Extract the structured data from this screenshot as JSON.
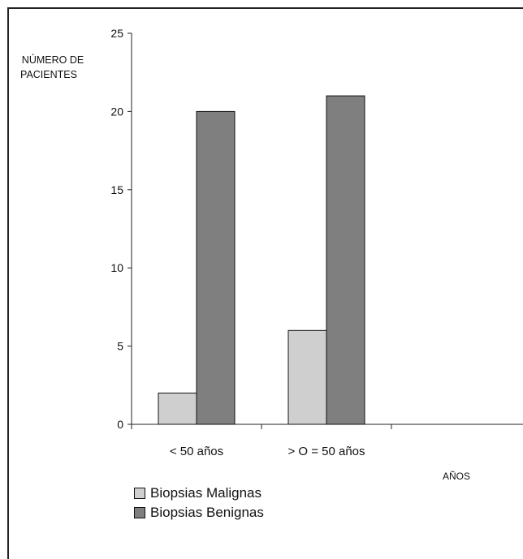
{
  "chart_data": {
    "type": "bar",
    "categories": [
      "< 50 años",
      "> O = 50 años"
    ],
    "series": [
      {
        "name": "Biopsias Malignas",
        "values": [
          2,
          6
        ],
        "color": "#cfcfcf"
      },
      {
        "name": "Biopsias Benignas",
        "values": [
          20,
          21
        ],
        "color": "#7f7f7f"
      }
    ],
    "ylabel": "NÚMERO DE PACIENTES",
    "ylabel_lines": [
      "NÚMERO DE",
      "PACIENTES"
    ],
    "xlabel": "AÑOS",
    "ylim": [
      0,
      25
    ],
    "yticks": [
      0,
      5,
      10,
      15,
      20,
      25
    ],
    "grid": false,
    "legend_position": "bottom-left"
  }
}
